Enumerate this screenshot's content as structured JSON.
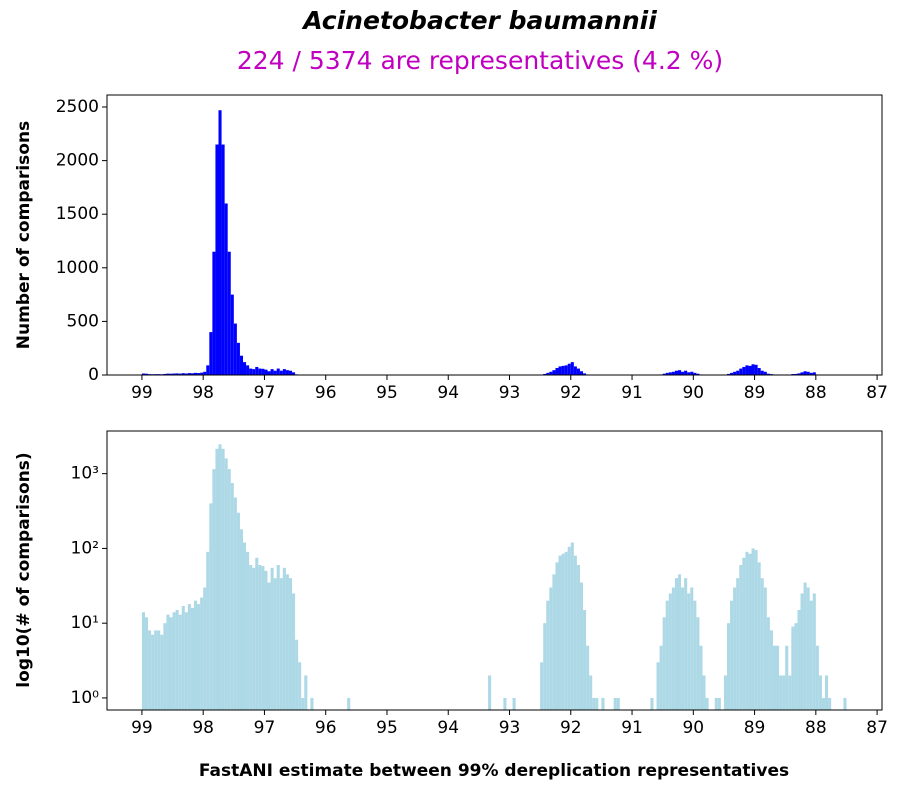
{
  "chart_data": [
    {
      "type": "histogram",
      "title": "Acinetobacter baumannii",
      "subtitle": "224 / 5374 are representatives (4.2 %)",
      "y_label": "Number of comparisons",
      "color": "#0000ff",
      "log_y": false,
      "xlim": [
        99.57,
        86.92
      ],
      "xticks": [
        99,
        98,
        97,
        96,
        95,
        94,
        93,
        92,
        91,
        90,
        89,
        88,
        87
      ],
      "ylim": [
        0,
        2612
      ],
      "yticks": [
        0,
        500,
        1000,
        1500,
        2000,
        2500
      ],
      "bins": [
        99,
        98.95,
        98.9,
        98.85,
        98.8,
        98.75,
        98.7,
        98.65,
        98.6,
        98.55,
        98.5,
        98.45,
        98.4,
        98.35,
        98.3,
        98.25,
        98.2,
        98.15,
        98.1,
        98.05,
        98,
        97.95,
        97.9,
        97.85,
        97.8,
        97.75,
        97.7,
        97.65,
        97.6,
        97.55,
        97.5,
        97.45,
        97.4,
        97.35,
        97.3,
        97.25,
        97.2,
        97.15,
        97.1,
        97.05,
        97,
        96.95,
        96.9,
        96.85,
        96.8,
        96.75,
        96.7,
        96.65,
        96.6,
        96.55,
        96.5,
        96.45,
        96.4,
        96.35,
        96.3,
        96.25,
        96.2,
        96.15,
        96.1,
        96.05,
        96,
        95.95,
        95.9,
        95.85,
        95.8,
        95.75,
        95.7,
        95.65,
        95.6,
        95.55,
        95.5,
        95.45,
        95.4,
        95.35,
        95.3,
        95.25,
        95.2,
        95.15,
        95.1,
        95.05,
        95,
        94.95,
        94.9,
        94.85,
        94.8,
        94.75,
        94.7,
        94.65,
        94.6,
        94.55,
        94.5,
        94.45,
        94.4,
        94.35,
        94.3,
        94.25,
        94.2,
        94.15,
        94.1,
        94.05,
        94,
        93.95,
        93.9,
        93.85,
        93.8,
        93.75,
        93.7,
        93.65,
        93.6,
        93.55,
        93.5,
        93.45,
        93.4,
        93.35,
        93.3,
        93.25,
        93.2,
        93.15,
        93.1,
        93.05,
        93,
        92.95,
        92.9,
        92.85,
        92.8,
        92.75,
        92.7,
        92.65,
        92.6,
        92.55,
        92.5,
        92.45,
        92.4,
        92.35,
        92.3,
        92.25,
        92.2,
        92.15,
        92.1,
        92.05,
        92,
        91.95,
        91.9,
        91.85,
        91.8,
        91.75,
        91.7,
        91.65,
        91.6,
        91.55,
        91.5,
        91.45,
        91.4,
        91.35,
        91.3,
        91.25,
        91.2,
        91.15,
        91.1,
        91.05,
        91,
        90.95,
        90.9,
        90.85,
        90.8,
        90.75,
        90.7,
        90.65,
        90.6,
        90.55,
        90.5,
        90.45,
        90.4,
        90.35,
        90.3,
        90.25,
        90.2,
        90.15,
        90.1,
        90.05,
        90,
        89.95,
        89.9,
        89.85,
        89.8,
        89.75,
        89.7,
        89.65,
        89.6,
        89.55,
        89.5,
        89.45,
        89.4,
        89.35,
        89.3,
        89.25,
        89.2,
        89.15,
        89.1,
        89.05,
        89,
        88.95,
        88.9,
        88.85,
        88.8,
        88.75,
        88.7,
        88.65,
        88.6,
        88.55,
        88.5,
        88.45,
        88.4,
        88.35,
        88.3,
        88.25,
        88.2,
        88.15,
        88.1,
        88.05,
        88,
        87.95,
        87.9,
        87.85,
        87.8,
        87.75,
        87.7,
        87.65,
        87.6,
        87.55,
        87.5
      ],
      "counts": [
        14,
        12,
        8,
        7,
        8,
        8,
        7,
        10,
        13,
        12,
        14,
        15,
        13,
        17,
        14,
        18,
        16,
        20,
        18,
        22,
        30,
        90,
        400,
        1150,
        2150,
        2470,
        2150,
        1600,
        1150,
        750,
        480,
        300,
        180,
        120,
        90,
        60,
        55,
        75,
        60,
        58,
        50,
        35,
        55,
        40,
        60,
        40,
        55,
        45,
        40,
        25,
        6,
        3,
        1,
        2,
        0,
        1,
        0,
        0,
        0,
        0,
        0,
        0,
        0,
        0,
        0,
        0,
        0,
        1,
        0,
        0,
        0,
        0,
        0,
        0,
        0,
        0,
        0,
        0,
        0,
        0,
        0,
        0,
        0,
        0,
        0,
        0,
        0,
        0,
        0,
        0,
        0,
        0,
        0,
        0,
        0,
        0,
        0,
        0,
        0,
        0,
        0,
        0,
        0,
        0,
        0,
        0,
        0,
        0,
        0,
        0,
        0,
        0,
        0,
        2,
        0,
        0,
        0,
        0,
        1,
        0,
        0,
        1,
        0,
        0,
        0,
        0,
        0,
        0,
        0,
        0,
        3,
        10,
        20,
        30,
        45,
        65,
        80,
        85,
        90,
        105,
        120,
        80,
        60,
        35,
        15,
        5,
        2,
        1,
        1,
        0,
        1,
        0,
        0,
        0,
        1,
        1,
        0,
        0,
        0,
        0,
        0,
        0,
        0,
        0,
        0,
        0,
        1,
        0,
        3,
        5,
        12,
        20,
        25,
        30,
        40,
        45,
        30,
        40,
        25,
        30,
        20,
        12,
        5,
        2,
        1,
        0,
        0,
        1,
        1,
        0,
        2,
        10,
        20,
        30,
        40,
        60,
        75,
        90,
        85,
        100,
        95,
        65,
        40,
        30,
        12,
        8,
        5,
        5,
        2,
        2,
        5,
        2,
        9,
        10,
        15,
        25,
        35,
        30,
        20,
        25,
        5,
        2,
        1,
        2,
        1,
        0,
        0,
        0,
        0,
        1
      ]
    },
    {
      "type": "histogram",
      "y_label": "log10(# of comparisons)",
      "x_label": "FastANI estimate between 99% dereplication representatives",
      "color": "#add8e6",
      "log_y": true,
      "xlim": [
        99.57,
        86.92
      ],
      "xticks": [
        99,
        98,
        97,
        96,
        95,
        94,
        93,
        92,
        91,
        90,
        89,
        88,
        87
      ],
      "ylim": [
        0.69,
        3720
      ],
      "yticks": [
        {
          "value": 1,
          "label": "10⁰"
        },
        {
          "value": 10,
          "label": "10¹"
        },
        {
          "value": 100,
          "label": "10²"
        },
        {
          "value": 1000,
          "label": "10³"
        }
      ],
      "bins": [
        99,
        98.95,
        98.9,
        98.85,
        98.8,
        98.75,
        98.7,
        98.65,
        98.6,
        98.55,
        98.5,
        98.45,
        98.4,
        98.35,
        98.3,
        98.25,
        98.2,
        98.15,
        98.1,
        98.05,
        98,
        97.95,
        97.9,
        97.85,
        97.8,
        97.75,
        97.7,
        97.65,
        97.6,
        97.55,
        97.5,
        97.45,
        97.4,
        97.35,
        97.3,
        97.25,
        97.2,
        97.15,
        97.1,
        97.05,
        97,
        96.95,
        96.9,
        96.85,
        96.8,
        96.75,
        96.7,
        96.65,
        96.6,
        96.55,
        96.5,
        96.45,
        96.4,
        96.35,
        96.3,
        96.25,
        96.2,
        96.15,
        96.1,
        96.05,
        96,
        95.95,
        95.9,
        95.85,
        95.8,
        95.75,
        95.7,
        95.65,
        95.6,
        95.55,
        95.5,
        95.45,
        95.4,
        95.35,
        95.3,
        95.25,
        95.2,
        95.15,
        95.1,
        95.05,
        95,
        94.95,
        94.9,
        94.85,
        94.8,
        94.75,
        94.7,
        94.65,
        94.6,
        94.55,
        94.5,
        94.45,
        94.4,
        94.35,
        94.3,
        94.25,
        94.2,
        94.15,
        94.1,
        94.05,
        94,
        93.95,
        93.9,
        93.85,
        93.8,
        93.75,
        93.7,
        93.65,
        93.6,
        93.55,
        93.5,
        93.45,
        93.4,
        93.35,
        93.3,
        93.25,
        93.2,
        93.15,
        93.1,
        93.05,
        93,
        92.95,
        92.9,
        92.85,
        92.8,
        92.75,
        92.7,
        92.65,
        92.6,
        92.55,
        92.5,
        92.45,
        92.4,
        92.35,
        92.3,
        92.25,
        92.2,
        92.15,
        92.1,
        92.05,
        92,
        91.95,
        91.9,
        91.85,
        91.8,
        91.75,
        91.7,
        91.65,
        91.6,
        91.55,
        91.5,
        91.45,
        91.4,
        91.35,
        91.3,
        91.25,
        91.2,
        91.15,
        91.1,
        91.05,
        91,
        90.95,
        90.9,
        90.85,
        90.8,
        90.75,
        90.7,
        90.65,
        90.6,
        90.55,
        90.5,
        90.45,
        90.4,
        90.35,
        90.3,
        90.25,
        90.2,
        90.15,
        90.1,
        90.05,
        90,
        89.95,
        89.9,
        89.85,
        89.8,
        89.75,
        89.7,
        89.65,
        89.6,
        89.55,
        89.5,
        89.45,
        89.4,
        89.35,
        89.3,
        89.25,
        89.2,
        89.15,
        89.1,
        89.05,
        89,
        88.95,
        88.9,
        88.85,
        88.8,
        88.75,
        88.7,
        88.65,
        88.6,
        88.55,
        88.5,
        88.45,
        88.4,
        88.35,
        88.3,
        88.25,
        88.2,
        88.15,
        88.1,
        88.05,
        88,
        87.95,
        87.9,
        87.85,
        87.8,
        87.75,
        87.7,
        87.65,
        87.6,
        87.55,
        87.5
      ],
      "counts": [
        14,
        12,
        8,
        7,
        8,
        8,
        7,
        10,
        13,
        12,
        14,
        15,
        13,
        17,
        14,
        18,
        16,
        20,
        18,
        22,
        30,
        90,
        400,
        1150,
        2150,
        2470,
        2150,
        1600,
        1150,
        750,
        480,
        300,
        180,
        120,
        90,
        60,
        55,
        75,
        60,
        58,
        50,
        35,
        55,
        40,
        60,
        40,
        55,
        45,
        40,
        25,
        6,
        3,
        1,
        2,
        0,
        1,
        0,
        0,
        0,
        0,
        0,
        0,
        0,
        0,
        0,
        0,
        0,
        1,
        0,
        0,
        0,
        0,
        0,
        0,
        0,
        0,
        0,
        0,
        0,
        0,
        0,
        0,
        0,
        0,
        0,
        0,
        0,
        0,
        0,
        0,
        0,
        0,
        0,
        0,
        0,
        0,
        0,
        0,
        0,
        0,
        0,
        0,
        0,
        0,
        0,
        0,
        0,
        0,
        0,
        0,
        0,
        0,
        0,
        2,
        0,
        0,
        0,
        0,
        1,
        0,
        0,
        1,
        0,
        0,
        0,
        0,
        0,
        0,
        0,
        0,
        3,
        10,
        20,
        30,
        45,
        65,
        80,
        85,
        90,
        105,
        120,
        80,
        60,
        35,
        15,
        5,
        2,
        1,
        1,
        0,
        1,
        0,
        0,
        0,
        1,
        1,
        0,
        0,
        0,
        0,
        0,
        0,
        0,
        0,
        0,
        0,
        1,
        0,
        3,
        5,
        12,
        20,
        25,
        30,
        40,
        45,
        30,
        40,
        25,
        30,
        20,
        12,
        5,
        2,
        1,
        0,
        0,
        1,
        1,
        0,
        2,
        10,
        20,
        30,
        40,
        60,
        75,
        90,
        85,
        100,
        95,
        65,
        40,
        30,
        12,
        8,
        5,
        5,
        2,
        2,
        5,
        2,
        9,
        10,
        15,
        25,
        35,
        30,
        20,
        25,
        5,
        2,
        1,
        2,
        1,
        0,
        0,
        0,
        0,
        1
      ]
    }
  ]
}
